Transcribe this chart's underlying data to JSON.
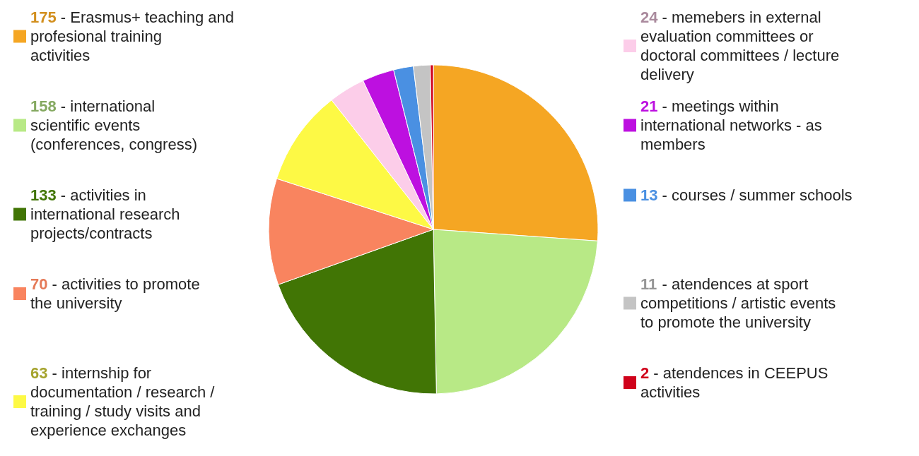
{
  "chart_data": {
    "type": "pie",
    "categories": [
      "175 - Erasmus+ teaching and profesional training activities",
      "158 - international scientific events (conferences, congress)",
      "133 - activities in international research projects/contracts",
      "70 - activities to promote the university",
      "63 - internship for documentation / research / training / study visits and experience exchanges",
      "24 - memebers in external evaluation committees or doctoral committees / lecture delivery",
      "21 - meetings within international networks - as members",
      "13 - courses / summer schools",
      "11 - atendences at sport competitions / artistic events to promote the university",
      "2 - atendences in CEEPUS activities"
    ],
    "values": [
      175,
      158,
      133,
      70,
      63,
      24,
      21,
      13,
      11,
      2
    ],
    "colors": [
      "#f5a623",
      "#b8e986",
      "#417505",
      "#f9845f",
      "#fdf945",
      "#fccde9",
      "#bd10e0",
      "#4a90e2",
      "#c4c4c4",
      "#d0021b"
    ],
    "legend": "left"
  }
}
